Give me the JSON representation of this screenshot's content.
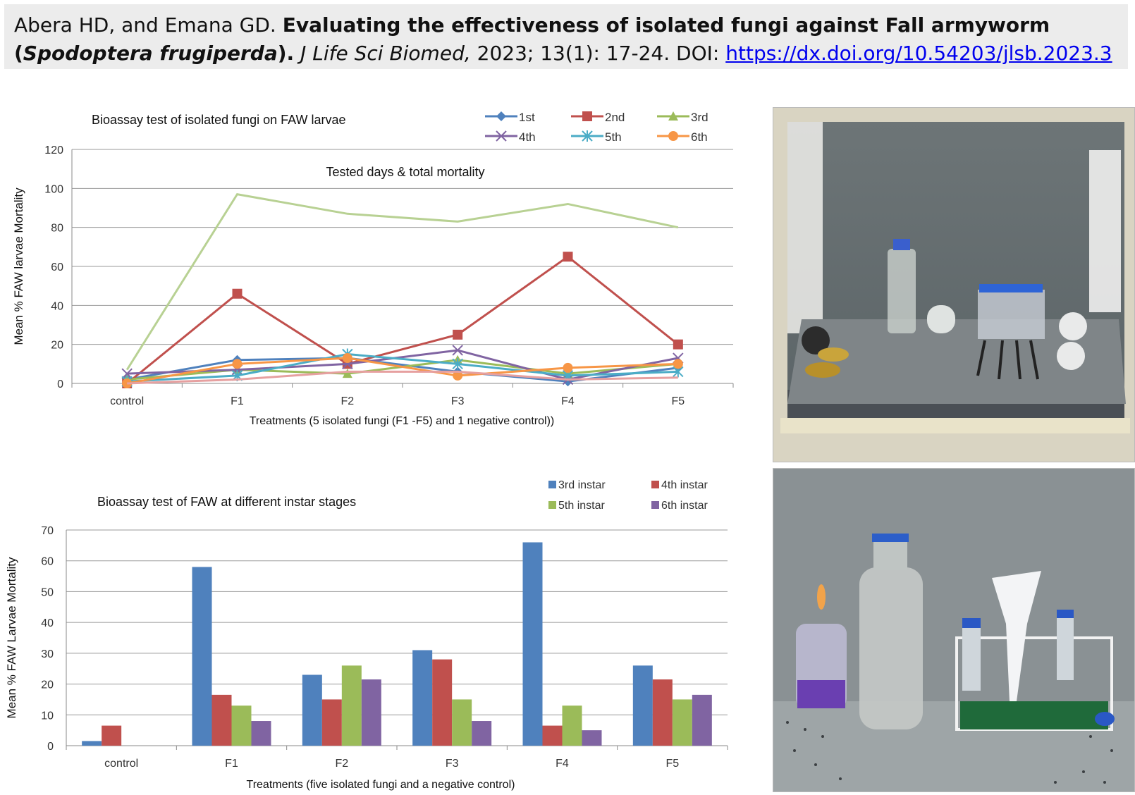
{
  "citation": {
    "authors": "Abera HD, and Emana GD. ",
    "title_bold_1": "Evaluating the effectiveness of isolated fungi against Fall armyworm (",
    "title_species": "Spodoptera frugiperda",
    "title_bold_2": ").",
    "journal": " J Life Sci Biomed,",
    "volume": " 2023; 13(1): 17-24. DOI: ",
    "doi_link": "https://dx.doi.org/10.54203/jlsb.2023.3"
  },
  "chart_data": [
    {
      "type": "line",
      "title": "Bioassay test of isolated fungi on FAW larvae",
      "subtitle": "Tested days & total mortality",
      "xlabel": "Treatments (5 isolated fungi (F1 -F5) and 1 negative control))",
      "ylabel": "Mean % FAW larvae Mortality",
      "categories": [
        "control",
        "F1",
        "F2",
        "F3",
        "F4",
        "F5"
      ],
      "ylim": [
        0,
        120
      ],
      "yticks": [
        "0",
        "20",
        "40",
        "60",
        "80",
        "100",
        "120"
      ],
      "grid": true,
      "legend_position": "top-right",
      "series": [
        {
          "name": "1st",
          "color": "#4f81bd",
          "marker": "diamond",
          "values": [
            2,
            12,
            13,
            6,
            1,
            8
          ]
        },
        {
          "name": "2nd",
          "color": "#c0504d",
          "marker": "square",
          "values": [
            0,
            46,
            10,
            25,
            65,
            20
          ]
        },
        {
          "name": "3rd",
          "color": "#9bbb59",
          "marker": "triangle",
          "values": [
            2,
            7,
            5,
            12,
            5,
            10
          ]
        },
        {
          "name": "4th",
          "color": "#8064a2",
          "marker": "x",
          "values": [
            5,
            7,
            10,
            17,
            2,
            13
          ]
        },
        {
          "name": "5th",
          "color": "#4bacc6",
          "marker": "star",
          "values": [
            1,
            4,
            15,
            10,
            4,
            6
          ]
        },
        {
          "name": "6th",
          "color": "#f79646",
          "marker": "circle",
          "values": [
            0,
            10,
            13,
            4,
            8,
            10
          ]
        },
        {
          "name": "",
          "color": "#e6a0a0",
          "marker": "none",
          "values": [
            0,
            2,
            6,
            6,
            2,
            3
          ]
        },
        {
          "name": "",
          "color": "#b8d193",
          "marker": "none",
          "values": [
            7,
            97,
            87,
            83,
            92,
            80
          ]
        }
      ]
    },
    {
      "type": "bar",
      "title": "Bioassay test of FAW at different instar stages",
      "xlabel": "Treatments (five isolated fungi and a negative control)",
      "ylabel": "Mean % FAW Larvae Mortality",
      "categories": [
        "control",
        "F1",
        "F2",
        "F3",
        "F4",
        "F5"
      ],
      "ylim": [
        0,
        70
      ],
      "yticks": [
        "0",
        "10",
        "20",
        "30",
        "40",
        "50",
        "60",
        "70"
      ],
      "grid": true,
      "legend_position": "top-right",
      "series": [
        {
          "name": "3rd instar",
          "color": "#4f81bd",
          "values": [
            1.5,
            58,
            23,
            31,
            66,
            26
          ]
        },
        {
          "name": "4th instar",
          "color": "#c0504d",
          "values": [
            6.5,
            16.5,
            15,
            28,
            6.5,
            21.5
          ]
        },
        {
          "name": "5th instar",
          "color": "#9bbb59",
          "values": [
            0,
            13,
            26,
            15,
            13,
            15
          ]
        },
        {
          "name": "6th instar",
          "color": "#8064a2",
          "values": [
            0,
            8,
            21.5,
            8,
            5,
            16.5
          ]
        }
      ]
    }
  ]
}
